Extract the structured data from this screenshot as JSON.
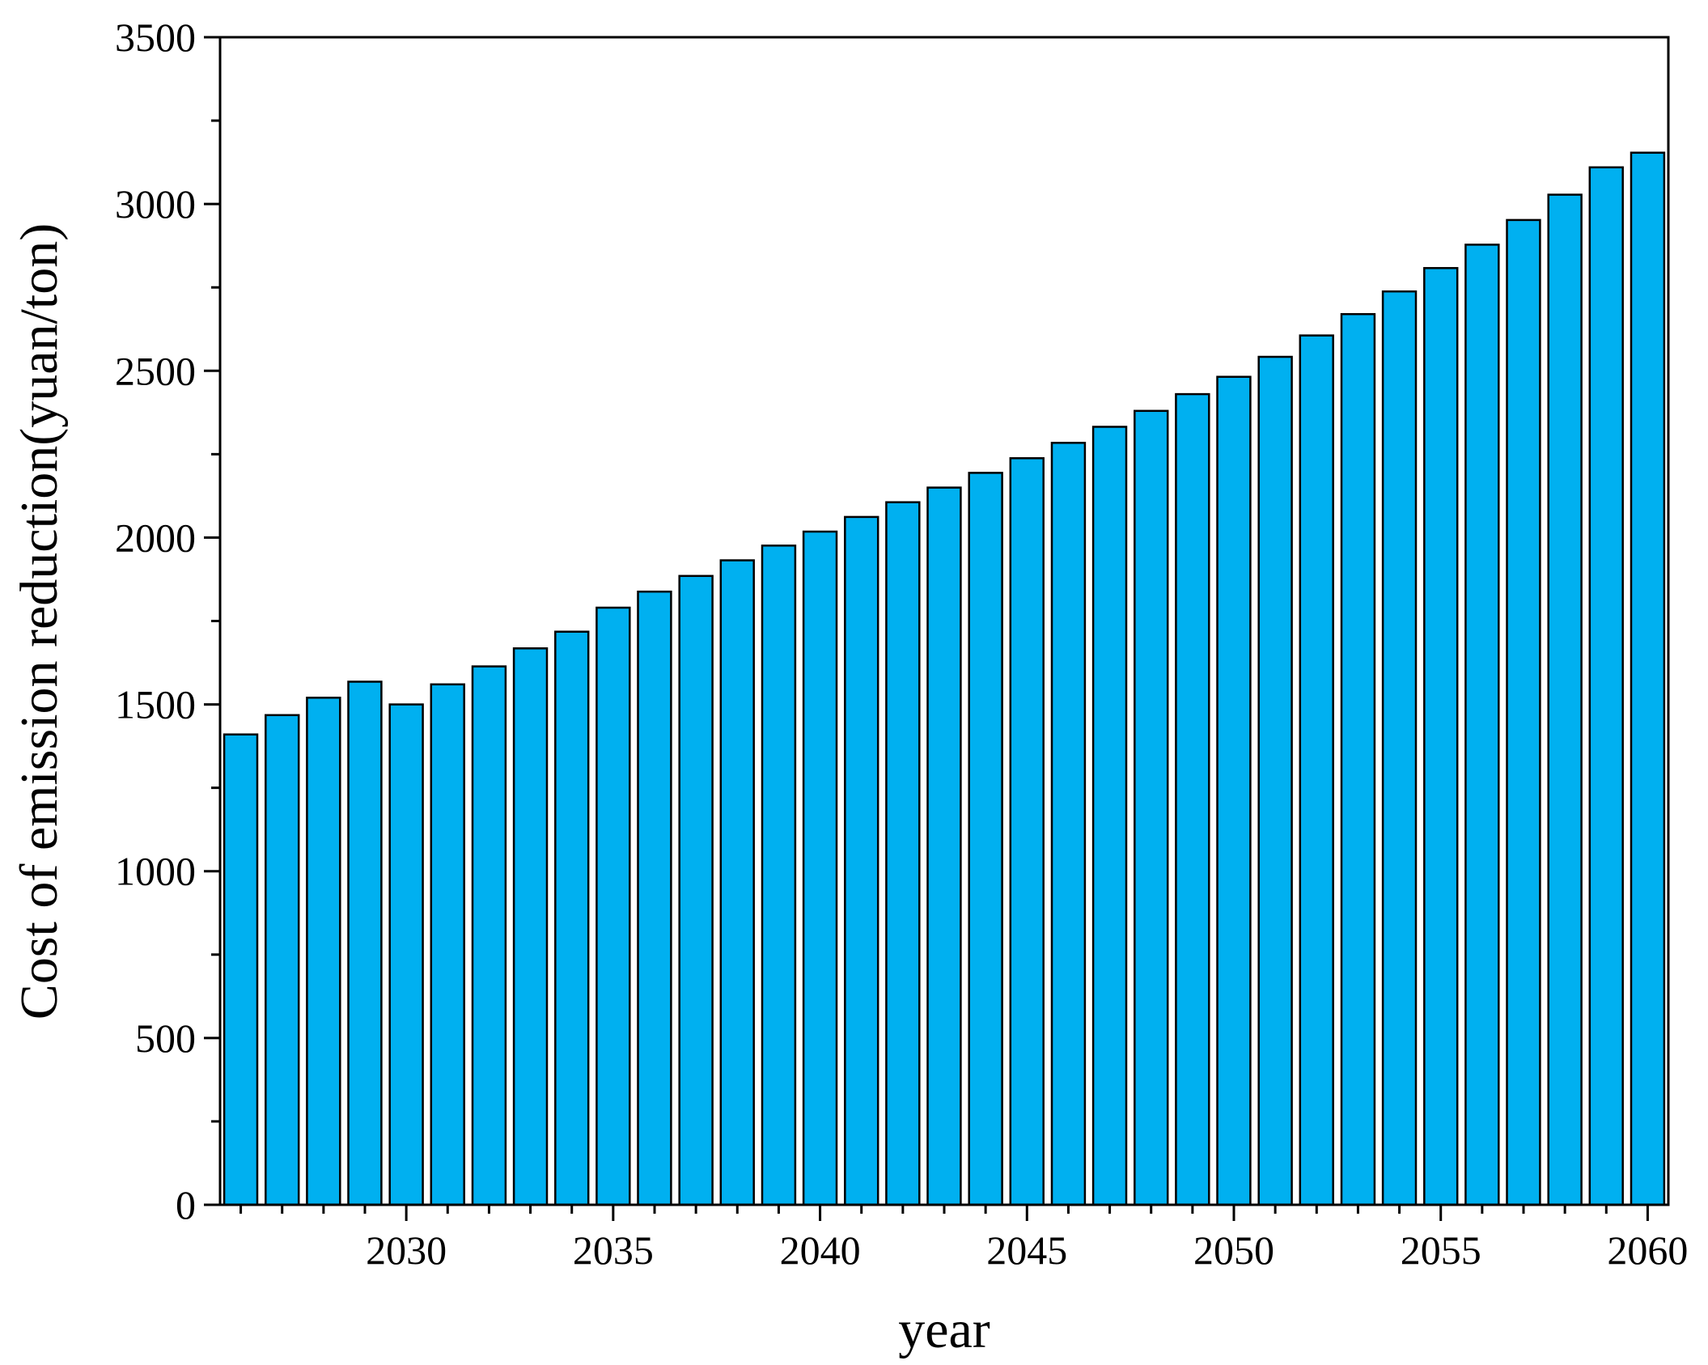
{
  "chart_data": {
    "type": "bar",
    "xlabel": "year",
    "ylabel": "Cost of emission reduction(yuan/ton)",
    "ylim": [
      0,
      3500
    ],
    "xlim": [
      2025.5,
      2060.5
    ],
    "yticks": [
      0,
      500,
      1000,
      1500,
      2000,
      2500,
      3000,
      3500
    ],
    "xticks_major": [
      2030,
      2035,
      2040,
      2045,
      2050,
      2055,
      2060
    ],
    "xticks_minor": [
      2026,
      2027,
      2028,
      2029,
      2031,
      2032,
      2033,
      2034,
      2036,
      2037,
      2038,
      2039,
      2041,
      2042,
      2043,
      2044,
      2046,
      2047,
      2048,
      2049,
      2051,
      2052,
      2053,
      2054,
      2056,
      2057,
      2058,
      2059
    ],
    "categories": [
      2026,
      2027,
      2028,
      2029,
      2030,
      2031,
      2032,
      2033,
      2034,
      2035,
      2036,
      2037,
      2038,
      2039,
      2040,
      2041,
      2042,
      2043,
      2044,
      2045,
      2046,
      2047,
      2048,
      2049,
      2050,
      2051,
      2052,
      2053,
      2054,
      2055,
      2056,
      2057,
      2058,
      2059,
      2060
    ],
    "values": [
      1410,
      1468,
      1520,
      1568,
      1500,
      1560,
      1614,
      1668,
      1718,
      1790,
      1838,
      1885,
      1932,
      1976,
      2018,
      2062,
      2106,
      2150,
      2194,
      2238,
      2284,
      2332,
      2380,
      2430,
      2482,
      2542,
      2606,
      2670,
      2738,
      2808,
      2878,
      2952,
      3028,
      3110,
      3154
    ],
    "grid": false,
    "legend": "none",
    "bar_color": "#00b0f0",
    "bar_edge_color": "#000000"
  }
}
